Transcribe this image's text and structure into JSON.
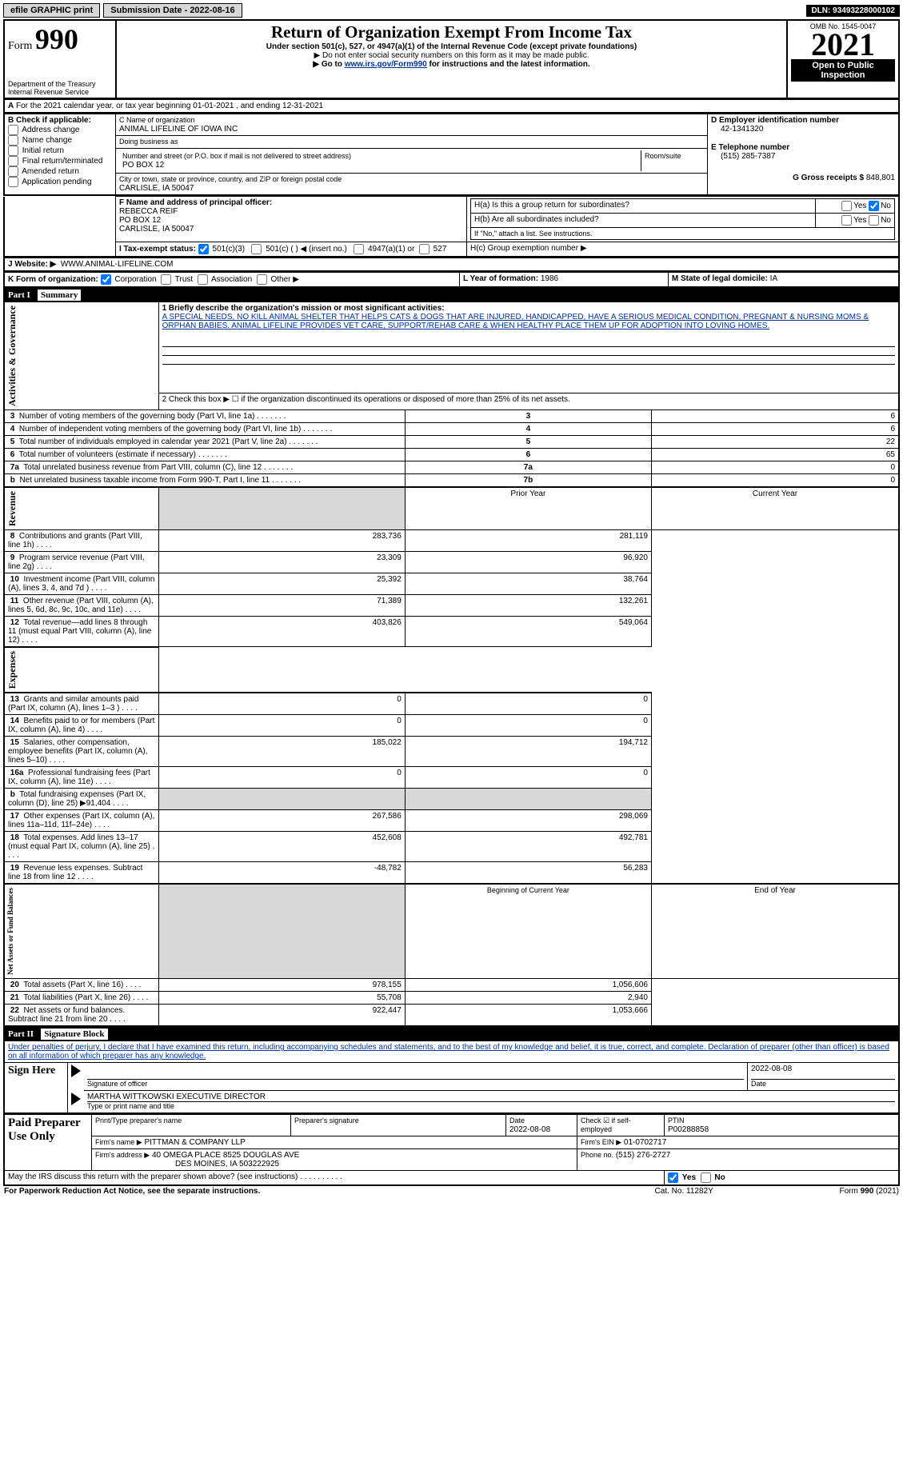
{
  "topbar": {
    "efile": "efile GRAPHIC print",
    "submission": "Submission Date - 2022-08-16",
    "dln": "DLN: 93493228000102"
  },
  "header": {
    "form_prefix": "Form",
    "form_number": "990",
    "title": "Return of Organization Exempt From Income Tax",
    "subtitle": "Under section 501(c), 527, or 4947(a)(1) of the Internal Revenue Code (except private foundations)",
    "note1": "▶ Do not enter social security numbers on this form as it may be made public.",
    "note2_prefix": "▶ Go to ",
    "note2_link": "www.irs.gov/Form990",
    "note2_suffix": " for instructions and the latest information.",
    "dept": "Department of the Treasury",
    "irs": "Internal Revenue Service",
    "omb": "OMB No. 1545-0047",
    "year": "2021",
    "open": "Open to Public Inspection"
  },
  "sectionA": {
    "line": "For the 2021 calendar year, or tax year beginning 01-01-2021    , and ending 12-31-2021"
  },
  "sectionB": {
    "heading": "B Check if applicable:",
    "items": [
      "Address change",
      "Name change",
      "Initial return",
      "Final return/terminated",
      "Amended return",
      "Application pending"
    ]
  },
  "sectionC": {
    "label": "C Name of organization",
    "name": "ANIMAL LIFELINE OF IOWA INC",
    "dba_label": "Doing business as",
    "addr_label": "Number and street (or P.O. box if mail is not delivered to street address)",
    "room_label": "Room/suite",
    "addr": "PO BOX 12",
    "city_label": "City or town, state or province, country, and ZIP or foreign postal code",
    "city": "CARLISLE, IA  50047"
  },
  "sectionD": {
    "label": "D Employer identification number",
    "value": "42-1341320"
  },
  "sectionE": {
    "label": "E Telephone number",
    "value": "(515) 285-7387"
  },
  "sectionG": {
    "label": "G Gross receipts $",
    "value": "848,801"
  },
  "sectionF": {
    "label": "F Name and address of principal officer:",
    "name": "REBECCA REIF",
    "addr1": "PO BOX 12",
    "addr2": "CARLISLE, IA  50047"
  },
  "sectionH": {
    "a": "H(a)  Is this a group return for subordinates?",
    "b": "H(b)  Are all subordinates included?",
    "b_note": "If \"No,\" attach a list. See instructions.",
    "c": "H(c)  Group exemption number ▶",
    "yes": "Yes",
    "no": "No"
  },
  "sectionI": {
    "label": "I  Tax-exempt status:",
    "opts": [
      "501(c)(3)",
      "501(c) (   ) ◀ (insert no.)",
      "4947(a)(1) or",
      "527"
    ]
  },
  "sectionJ": {
    "label": "J  Website: ▶",
    "value": "WWW.ANIMAL-LIFELINE.COM"
  },
  "sectionK": {
    "label": "K Form of organization:",
    "opts": [
      "Corporation",
      "Trust",
      "Association",
      "Other ▶"
    ]
  },
  "sectionL": {
    "label": "L Year of formation:",
    "value": "1986"
  },
  "sectionM": {
    "label": "M State of legal domicile:",
    "value": "IA"
  },
  "part1": {
    "header": "Part I",
    "title": "Summary",
    "mission_label": "1  Briefly describe the organization's mission or most significant activities:",
    "mission": "A SPECIAL NEEDS, NO KILL ANIMAL SHELTER THAT HELPS CATS & DOGS THAT ARE INJURED, HANDICAPPED, HAVE A SERIOUS MEDICAL CONDITION, PREGNANT & NURSING MOMS & ORPHAN BABIES. ANIMAL LIFELINE PROVIDES VET CARE, SUPPORT/REHAB CARE & WHEN HEALTHY PLACE THEM UP FOR ADOPTION INTO LOVING HOMES.",
    "line2": "2  Check this box ▶ ☐  if the organization discontinued its operations or disposed of more than 25% of its net assets.",
    "rows_ag": [
      {
        "n": "3",
        "txt": "Number of voting members of the governing body (Part VI, line 1a)",
        "box": "3",
        "val": "6"
      },
      {
        "n": "4",
        "txt": "Number of independent voting members of the governing body (Part VI, line 1b)",
        "box": "4",
        "val": "6"
      },
      {
        "n": "5",
        "txt": "Total number of individuals employed in calendar year 2021 (Part V, line 2a)",
        "box": "5",
        "val": "22"
      },
      {
        "n": "6",
        "txt": "Total number of volunteers (estimate if necessary)",
        "box": "6",
        "val": "65"
      },
      {
        "n": "7a",
        "txt": "Total unrelated business revenue from Part VIII, column (C), line 12",
        "box": "7a",
        "val": "0"
      },
      {
        "n": "b",
        "txt": "Net unrelated business taxable income from Form 990-T, Part I, line 11",
        "box": "7b",
        "val": "0"
      }
    ],
    "prior_hdr": "Prior Year",
    "curr_hdr": "Current Year",
    "rows_rev": [
      {
        "n": "8",
        "txt": "Contributions and grants (Part VIII, line 1h)",
        "p": "283,736",
        "c": "281,119"
      },
      {
        "n": "9",
        "txt": "Program service revenue (Part VIII, line 2g)",
        "p": "23,309",
        "c": "96,920"
      },
      {
        "n": "10",
        "txt": "Investment income (Part VIII, column (A), lines 3, 4, and 7d )",
        "p": "25,392",
        "c": "38,764"
      },
      {
        "n": "11",
        "txt": "Other revenue (Part VIII, column (A), lines 5, 6d, 8c, 9c, 10c, and 11e)",
        "p": "71,389",
        "c": "132,261"
      },
      {
        "n": "12",
        "txt": "Total revenue—add lines 8 through 11 (must equal Part VIII, column (A), line 12)",
        "p": "403,826",
        "c": "549,064"
      }
    ],
    "rows_exp": [
      {
        "n": "13",
        "txt": "Grants and similar amounts paid (Part IX, column (A), lines 1–3 )",
        "p": "0",
        "c": "0"
      },
      {
        "n": "14",
        "txt": "Benefits paid to or for members (Part IX, column (A), line 4)",
        "p": "0",
        "c": "0"
      },
      {
        "n": "15",
        "txt": "Salaries, other compensation, employee benefits (Part IX, column (A), lines 5–10)",
        "p": "185,022",
        "c": "194,712"
      },
      {
        "n": "16a",
        "txt": "Professional fundraising fees (Part IX, column (A), line 11e)",
        "p": "0",
        "c": "0"
      },
      {
        "n": "b",
        "txt": "Total fundraising expenses (Part IX, column (D), line 25) ▶91,404",
        "p": "",
        "c": "",
        "grey": true
      },
      {
        "n": "17",
        "txt": "Other expenses (Part IX, column (A), lines 11a–11d, 11f–24e)",
        "p": "267,586",
        "c": "298,069"
      },
      {
        "n": "18",
        "txt": "Total expenses. Add lines 13–17 (must equal Part IX, column (A), line 25)",
        "p": "452,608",
        "c": "492,781"
      },
      {
        "n": "19",
        "txt": "Revenue less expenses. Subtract line 18 from line 12",
        "p": "-48,782",
        "c": "56,283"
      }
    ],
    "na_hdr1": "Beginning of Current Year",
    "na_hdr2": "End of Year",
    "rows_na": [
      {
        "n": "20",
        "txt": "Total assets (Part X, line 16)",
        "p": "978,155",
        "c": "1,056,606"
      },
      {
        "n": "21",
        "txt": "Total liabilities (Part X, line 26)",
        "p": "55,708",
        "c": "2,940"
      },
      {
        "n": "22",
        "txt": "Net assets or fund balances. Subtract line 21 from line 20",
        "p": "922,447",
        "c": "1,053,666"
      }
    ],
    "vlabels": {
      "ag": "Activities & Governance",
      "rev": "Revenue",
      "exp": "Expenses",
      "na": "Net Assets or\nFund Balances"
    }
  },
  "part2": {
    "header": "Part II",
    "title": "Signature Block",
    "decl": "Under penalties of perjury, I declare that I have examined this return, including accompanying schedules and statements, and to the best of my knowledge and belief, it is true, correct, and complete. Declaration of preparer (other than officer) is based on all information of which preparer has any knowledge.",
    "sign_here": "Sign Here",
    "sig_officer": "Signature of officer",
    "date": "Date",
    "date_val": "2022-08-08",
    "officer_name": "MARTHA WITTKOWSKI  EXECUTIVE DIRECTOR",
    "officer_sub": "Type or print name and title",
    "paid": "Paid Preparer Use Only",
    "prep_name_lbl": "Print/Type preparer's name",
    "prep_sig_lbl": "Preparer's signature",
    "date2": "2022-08-08",
    "check_self": "Check ☑ if self-employed",
    "ptin_lbl": "PTIN",
    "ptin": "P00288858",
    "firm_name_lbl": "Firm's name    ▶",
    "firm_name": "PITTMAN & COMPANY LLP",
    "firm_ein_lbl": "Firm's EIN ▶",
    "firm_ein": "01-0702717",
    "firm_addr_lbl": "Firm's address ▶",
    "firm_addr1": "40 OMEGA PLACE 8525 DOUGLAS AVE",
    "firm_addr2": "DES MOINES, IA  503222925",
    "phone_lbl": "Phone no.",
    "phone": "(515) 276-2727",
    "discuss": "May the IRS discuss this return with the preparer shown above? (see instructions)",
    "discuss_yes": "Yes",
    "discuss_no": "No"
  },
  "footer": {
    "left": "For Paperwork Reduction Act Notice, see the separate instructions.",
    "mid": "Cat. No. 11282Y",
    "right": "Form 990 (2021)"
  }
}
